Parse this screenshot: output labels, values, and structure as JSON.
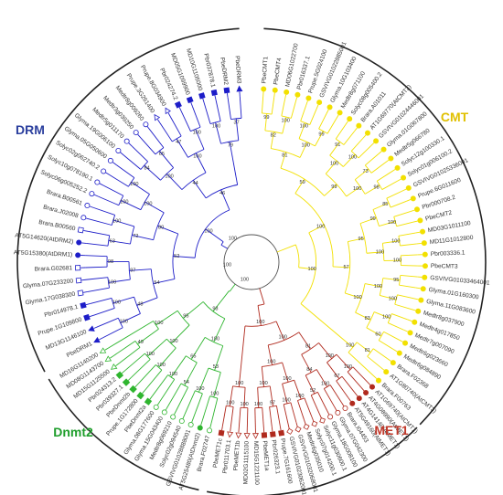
{
  "colors": {
    "CMT": "#f2e000",
    "DRM": "#1d1dc8",
    "MET1": "#b02a1e",
    "Dnmt2": "#2fb52f",
    "root": "#555555",
    "cmt_label": "#e0c000",
    "drm_label": "#2b3f9e",
    "met1_label": "#c0392b",
    "dnmt2_label": "#1f9e2c"
  },
  "clades": [
    {
      "id": "CMT",
      "label": "CMT",
      "color_key": "cmt_label"
    },
    {
      "id": "DRM",
      "label": "DRM",
      "color_key": "drm_label"
    },
    {
      "id": "MET1",
      "label": "MET1",
      "color_key": "met1_label"
    },
    {
      "id": "Dnmt2",
      "label": "Dnmt2",
      "color_key": "dnmt2_label"
    }
  ],
  "leaves": [
    {
      "name": "PbeCMT1",
      "clade": "CMT",
      "marker": "circle-filled"
    },
    {
      "name": "PbeCMT4",
      "clade": "CMT",
      "marker": "circle-filled"
    },
    {
      "name": "MD06G1022700",
      "clade": "CMT",
      "marker": "circle-filled"
    },
    {
      "name": "Pbr016337.1",
      "clade": "CMT",
      "marker": "circle-filled"
    },
    {
      "name": "Prupe.5G024100",
      "clade": "CMT",
      "marker": "circle-filled"
    },
    {
      "name": "GSVIVG01022885001",
      "clade": "CMT",
      "marker": "circle-filled"
    },
    {
      "name": "Glyma.10G103400",
      "clade": "CMT",
      "marker": "circle-filled"
    },
    {
      "name": "Medtr8g071100",
      "clade": "CMT",
      "marker": "circle-filled"
    },
    {
      "name": "Solyc08g005400.2",
      "clade": "CMT",
      "marker": "circle-filled"
    },
    {
      "name": "Brara.A01011",
      "clade": "CMT",
      "marker": "circle-filled"
    },
    {
      "name": "AT1G69770(AtCMT2)",
      "clade": "CMT",
      "marker": "circle-filled"
    },
    {
      "name": "GSVIVG01024446001",
      "clade": "CMT",
      "marker": "circle-filled"
    },
    {
      "name": "Glyma.01G067800",
      "clade": "CMT",
      "marker": "circle-filled"
    },
    {
      "name": "Medtr5g066780",
      "clade": "CMT",
      "marker": "circle-filled"
    },
    {
      "name": "Solyc12g100330.1",
      "clade": "CMT",
      "marker": "circle-filled"
    },
    {
      "name": "Solyc01g006100.2",
      "clade": "CMT",
      "marker": "circle-filled"
    },
    {
      "name": "GSVIVG01025336001",
      "clade": "CMT",
      "marker": "circle-filled"
    },
    {
      "name": "Prupe.6G011600",
      "clade": "CMT",
      "marker": "circle-filled"
    },
    {
      "name": "Pbr000708.2",
      "clade": "CMT",
      "marker": "circle-filled"
    },
    {
      "name": "PbeCMT2",
      "clade": "CMT",
      "marker": "circle-filled"
    },
    {
      "name": "MD03G1011100",
      "clade": "CMT",
      "marker": "circle-filled"
    },
    {
      "name": "MD11G1012800",
      "clade": "CMT",
      "marker": "circle-filled"
    },
    {
      "name": "Pbr003336.1",
      "clade": "CMT",
      "marker": "circle-filled"
    },
    {
      "name": "PbeCMT3",
      "clade": "CMT",
      "marker": "circle-filled"
    },
    {
      "name": "GSVIVG01033464001",
      "clade": "CMT",
      "marker": "circle-filled"
    },
    {
      "name": "Glyma.01G160300",
      "clade": "CMT",
      "marker": "circle-filled"
    },
    {
      "name": "Glyma.11G083600",
      "clade": "CMT",
      "marker": "circle-filled"
    },
    {
      "name": "Medtr8g037900",
      "clade": "CMT",
      "marker": "circle-filled"
    },
    {
      "name": "Medtr4g017850",
      "clade": "CMT",
      "marker": "circle-filled"
    },
    {
      "name": "Medtr7g007090",
      "clade": "CMT",
      "marker": "circle-filled"
    },
    {
      "name": "Medtr6g023660",
      "clade": "CMT",
      "marker": "circle-filled"
    },
    {
      "name": "Medtr6g084890",
      "clade": "CMT",
      "marker": "circle-filled"
    },
    {
      "name": "Brara.F02368",
      "clade": "CMT",
      "marker": "circle-filled"
    },
    {
      "name": "AT1G80740(AtCMT3)",
      "clade": "CMT",
      "marker": "circle-filled"
    },
    {
      "name": "Brara.F00763",
      "clade": "CMT",
      "marker": "circle-filled"
    },
    {
      "name": "AT1G69740(AtCMT1)",
      "clade": "MET1",
      "marker": "circle-filled"
    },
    {
      "name": "AT4G08990(AtMET1)",
      "clade": "MET1",
      "marker": "circle-filled"
    },
    {
      "name": "AT4G14140(AtMET1)",
      "clade": "MET1",
      "marker": "circle-filled"
    },
    {
      "name": "AT5G49160(AtMET1)",
      "clade": "MET1",
      "marker": "circle-filled"
    },
    {
      "name": "Brara.I04453",
      "clade": "MET1",
      "marker": "circle-open"
    },
    {
      "name": "Glyma.07G042300",
      "clade": "MET1",
      "marker": "circle-open"
    },
    {
      "name": "Glyma.18G008100",
      "clade": "MET1",
      "marker": "circle-open"
    },
    {
      "name": "Solyc11g030600.1",
      "clade": "MET1",
      "marker": "diamond-open"
    },
    {
      "name": "Solyc07g014200.1",
      "clade": "MET1",
      "marker": "diamond-open"
    },
    {
      "name": "Medtr6g035010",
      "clade": "MET1",
      "marker": "diamond-open"
    },
    {
      "name": "GSVIVG01032068001",
      "clade": "MET1",
      "marker": "diamond-open"
    },
    {
      "name": "GSVIVG01023062001",
      "clade": "MET1",
      "marker": "diamond-open"
    },
    {
      "name": "Prupe.7G161600",
      "clade": "MET1",
      "marker": "square-filled"
    },
    {
      "name": "Pbr026323.1",
      "clade": "MET1",
      "marker": "square-filled"
    },
    {
      "name": "PbeMET1a",
      "clade": "MET1",
      "marker": "square-filled"
    },
    {
      "name": "MD15G1221100",
      "clade": "MET1",
      "marker": "triangle-open"
    },
    {
      "name": "MD02G1115100",
      "clade": "MET1",
      "marker": "triangle-open"
    },
    {
      "name": "PbeMET1b",
      "clade": "MET1",
      "marker": "triangle-open"
    },
    {
      "name": "Pbr011703.1",
      "clade": "MET1",
      "marker": "triangle-open"
    },
    {
      "name": "PbeMET1c",
      "clade": "MET1",
      "marker": "square-filled"
    },
    {
      "name": "Brara.F02747",
      "clade": "Dnmt2",
      "marker": "circle-open"
    },
    {
      "name": "AT5G25480(AtDnmt2)",
      "clade": "Dnmt2",
      "marker": "circle-filled"
    },
    {
      "name": "GSVIVG01028888001",
      "clade": "Dnmt2",
      "marker": "circle-open"
    },
    {
      "name": "Solyc02g094540",
      "clade": "Dnmt2",
      "marker": "circle-open"
    },
    {
      "name": "Medtr8g069210",
      "clade": "Dnmt2",
      "marker": "circle-open"
    },
    {
      "name": "Glyma.15G043400",
      "clade": "Dnmt2",
      "marker": "circle-open"
    },
    {
      "name": "Glyma.08G177600",
      "clade": "Dnmt2",
      "marker": "circle-open"
    },
    {
      "name": "PbeDnmt2a",
      "clade": "Dnmt2",
      "marker": "square-filled"
    },
    {
      "name": "Prupe.1G172800",
      "clade": "Dnmt2",
      "marker": "square-filled"
    },
    {
      "name": "PbeDnmt2b",
      "clade": "Dnmt2",
      "marker": "square-filled"
    },
    {
      "name": "Pbr039327.1",
      "clade": "Dnmt2",
      "marker": "square-filled"
    },
    {
      "name": "Pbr024313.2",
      "clade": "Dnmt2",
      "marker": "square-filled"
    },
    {
      "name": "MD15G1125500",
      "clade": "Dnmt2",
      "marker": "triangle-open"
    },
    {
      "name": "MD08G1143700",
      "clade": "Dnmt2",
      "marker": "triangle-open"
    },
    {
      "name": "MD16G1140200",
      "clade": "Dnmt2",
      "marker": "triangle-open"
    },
    {
      "name": "PbeDRM1",
      "clade": "DRM",
      "marker": "triangle-filled"
    },
    {
      "name": "MD13G1146100",
      "clade": "DRM",
      "marker": "triangle-filled"
    },
    {
      "name": "Prupe.1G109800",
      "clade": "DRM",
      "marker": "square-filled"
    },
    {
      "name": "Pbr014978.1",
      "clade": "DRM",
      "marker": "square-filled"
    },
    {
      "name": "Glyma.17G038300",
      "clade": "DRM",
      "marker": "square-open"
    },
    {
      "name": "Glyma.07G233200",
      "clade": "DRM",
      "marker": "square-open"
    },
    {
      "name": "Brara.G02681",
      "clade": "DRM",
      "marker": "square-open"
    },
    {
      "name": "AT5G15380(AtDRM1)",
      "clade": "DRM",
      "marker": "circle-filled"
    },
    {
      "name": "AT5G14620(AtDRM2)",
      "clade": "DRM",
      "marker": "circle-filled"
    },
    {
      "name": "Brara.B00560",
      "clade": "DRM",
      "marker": "square-open"
    },
    {
      "name": "Brara.J02008",
      "clade": "DRM",
      "marker": "circle-open"
    },
    {
      "name": "Brara.B00561",
      "clade": "DRM",
      "marker": "circle-open"
    },
    {
      "name": "Solyc06g005252.2",
      "clade": "DRM",
      "marker": "circle-open"
    },
    {
      "name": "Solyc10g078190.1",
      "clade": "DRM",
      "marker": "circle-open"
    },
    {
      "name": "Solyc02g062740.2",
      "clade": "DRM",
      "marker": "circle-open"
    },
    {
      "name": "Glyma.05G050600",
      "clade": "DRM",
      "marker": "circle-open"
    },
    {
      "name": "Glyma.19G006100",
      "clade": "DRM",
      "marker": "circle-open"
    },
    {
      "name": "Medtr5g011170",
      "clade": "DRM",
      "marker": "circle-open"
    },
    {
      "name": "Medtr3g039250",
      "clade": "DRM",
      "marker": "circle-open"
    },
    {
      "name": "Medtr8g009260",
      "clade": "DRM",
      "marker": "circle-open"
    },
    {
      "name": "Prupe.3G261400",
      "clade": "DRM",
      "marker": "triangle-open"
    },
    {
      "name": "Prupe.8G034900",
      "clade": "DRM",
      "marker": "triangle-open"
    },
    {
      "name": "Pbr024274.2",
      "clade": "DRM",
      "marker": "square-filled"
    },
    {
      "name": "MD05G1099900",
      "clade": "DRM",
      "marker": "square-filled"
    },
    {
      "name": "MD10G1105000",
      "clade": "DRM",
      "marker": "square-filled"
    },
    {
      "name": "Pbr037878.1",
      "clade": "DRM",
      "marker": "square-filled"
    },
    {
      "name": "PbeDRM2",
      "clade": "DRM",
      "marker": "square-filled"
    },
    {
      "name": "PbeDRM3",
      "clade": "DRM",
      "marker": "triangle-filled"
    }
  ],
  "bootstrap": {
    "CMT": [
      "99",
      "100",
      "100",
      "99",
      "91",
      "100",
      "73",
      "98",
      "85",
      "100",
      "100",
      "100",
      "95",
      "100",
      "100",
      "60",
      "81",
      "82",
      "100",
      "100",
      "100",
      "99",
      "100",
      "100",
      "83",
      "100",
      "81",
      "99",
      "95",
      "100",
      "59",
      "57",
      "100",
      "100",
      "100"
    ],
    "MET1": [
      "100",
      "67",
      "100",
      "52",
      "100",
      "100",
      "97",
      "100",
      "100",
      "100",
      "100",
      "84",
      "100",
      "100",
      "100",
      "81",
      "100",
      "100",
      "100",
      "70"
    ],
    "Dnmt2": [
      "100",
      "100",
      "54",
      "100",
      "100",
      "100",
      "49",
      "53",
      "65",
      "100",
      "100",
      "100",
      "95",
      "93"
    ],
    "DRM": [
      "100",
      "100",
      "100",
      "98",
      "63",
      "100",
      "100",
      "100",
      "84",
      "65",
      "47",
      "100",
      "100",
      "37",
      "48",
      "97",
      "72",
      "100",
      "100",
      "100",
      "79",
      "54",
      "80",
      "44",
      "52",
      "46",
      "100",
      "56",
      "100",
      "100"
    ],
    "root": [
      "100",
      "100",
      "100"
    ]
  }
}
